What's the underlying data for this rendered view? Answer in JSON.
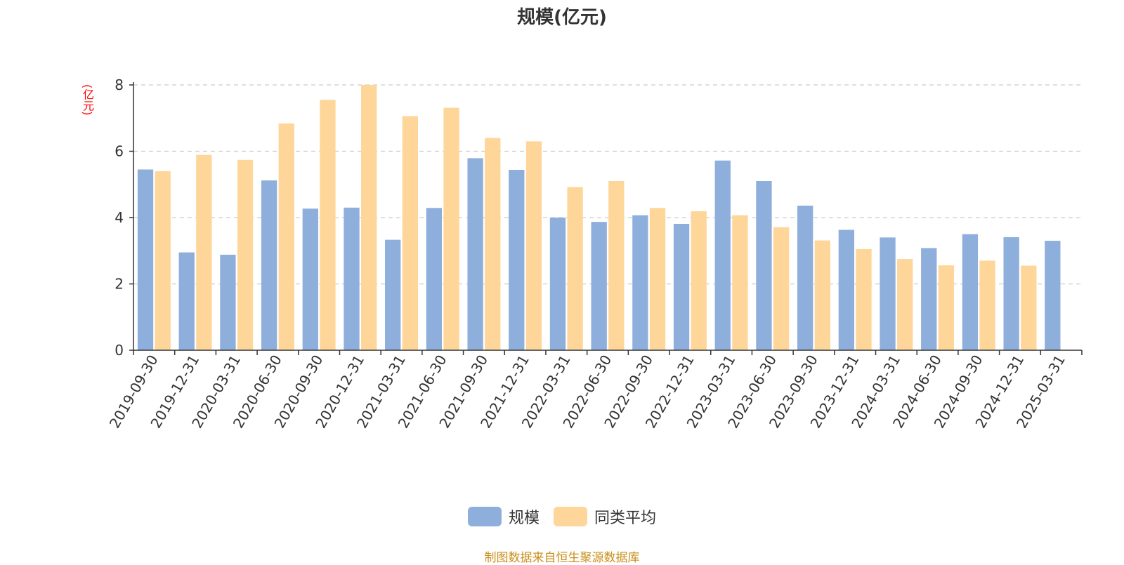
{
  "title": "规模(亿元)",
  "unit_label": "(亿元)",
  "source_note": "制图数据来自恒生聚源数据库",
  "colors": {
    "series0": "#8eaedb",
    "series1": "#fed699",
    "grid": "#cccccc",
    "axis": "#333333"
  },
  "chart_data": {
    "type": "bar",
    "title": "规模(亿元)",
    "ylabel": "(亿元)",
    "xlabel": "",
    "ylim": [
      0,
      8
    ],
    "yticks": [
      0,
      2,
      4,
      6,
      8
    ],
    "grid": true,
    "legend_position": "bottom-center",
    "categories": [
      "2019-09-30",
      "2019-12-31",
      "2020-03-31",
      "2020-06-30",
      "2020-09-30",
      "2020-12-31",
      "2021-03-31",
      "2021-06-30",
      "2021-09-30",
      "2021-12-31",
      "2022-03-31",
      "2022-06-30",
      "2022-09-30",
      "2022-12-31",
      "2023-03-31",
      "2023-06-30",
      "2023-09-30",
      "2023-12-31",
      "2024-03-31",
      "2024-06-30",
      "2024-09-30",
      "2024-12-31",
      "2025-03-31"
    ],
    "series": [
      {
        "name": "规模",
        "values": [
          5.45,
          2.95,
          2.88,
          5.12,
          4.27,
          4.3,
          3.33,
          4.29,
          5.79,
          5.44,
          4.0,
          3.87,
          4.07,
          3.81,
          5.72,
          5.1,
          4.36,
          3.63,
          3.4,
          3.08,
          3.5,
          3.41,
          3.3
        ]
      },
      {
        "name": "同类平均",
        "values": [
          5.4,
          5.89,
          5.74,
          6.84,
          7.55,
          8.0,
          7.06,
          7.31,
          6.4,
          6.3,
          4.92,
          5.1,
          4.29,
          4.19,
          4.07,
          3.71,
          3.31,
          3.05,
          2.75,
          2.56,
          2.7,
          2.55,
          null
        ]
      }
    ]
  }
}
